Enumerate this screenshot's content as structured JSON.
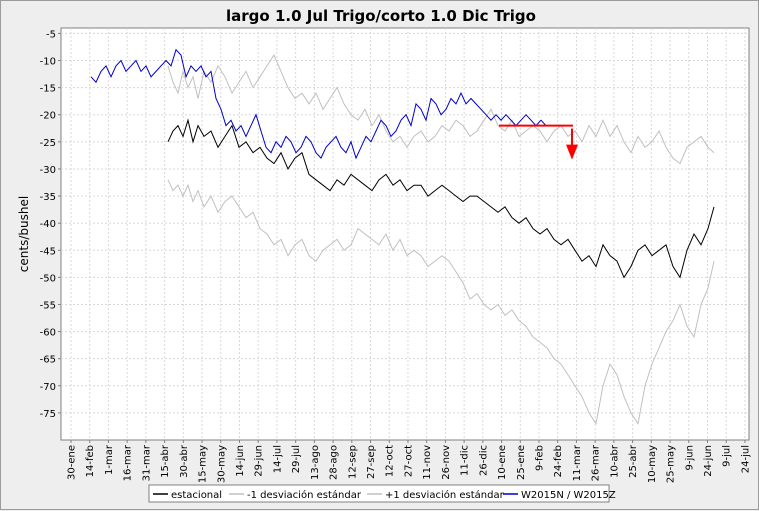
{
  "chart_data": {
    "type": "line",
    "title": "largo 1.0 Jul Trigo/corto 1.0 Dic Trigo",
    "xlabel": "",
    "ylabel": "cents/bushel",
    "ylim": [
      -80,
      -4
    ],
    "grid": true,
    "legend_position": "bottom",
    "x_tick_labels": [
      "30-ene",
      "14-feb",
      "1-mar",
      "16-mar",
      "31-mar",
      "15-abr",
      "30-abr",
      "15-may",
      "30-may",
      "14-jun",
      "29-jun",
      "14-jul",
      "29-jul",
      "13-ago",
      "28-ago",
      "12-sep",
      "27-sep",
      "12-oct",
      "27-oct",
      "11-nov",
      "26-nov",
      "11-dic",
      "26-dic",
      "10-ene",
      "25-ene",
      "9-feb",
      "24-feb",
      "11-mar",
      "26-mar",
      "10-abr",
      "25-abr",
      "10-may",
      "25-may",
      "9-jun",
      "24-jun",
      "9-jul",
      "24-jul"
    ],
    "y_ticks": [
      -5,
      -10,
      -15,
      -20,
      -25,
      -30,
      -35,
      -40,
      -45,
      -50,
      -55,
      -60,
      -65,
      -70,
      -75
    ],
    "series": [
      {
        "name": "estacional",
        "color": "#000000",
        "x": [
          167,
          172,
          177,
          182,
          187,
          192,
          197,
          203,
          210,
          217,
          224,
          231,
          238,
          245,
          252,
          259,
          266,
          273,
          280,
          287,
          294,
          301,
          308,
          315,
          322,
          329,
          336,
          343,
          350,
          357,
          364,
          371,
          378,
          385,
          392,
          399,
          406,
          413,
          420,
          427,
          434,
          441,
          448,
          455,
          462,
          469,
          476,
          483,
          490,
          497,
          504,
          511,
          518,
          525,
          532,
          539,
          546,
          553,
          560,
          567,
          574,
          581,
          588,
          595,
          602,
          609,
          616,
          623,
          630,
          637,
          644,
          651,
          658,
          665,
          672,
          679,
          686,
          693,
          700,
          707,
          713
        ],
        "values": [
          -25,
          -23,
          -22,
          -24,
          -21,
          -25,
          -22,
          -24,
          -23,
          -26,
          -24,
          -22,
          -26,
          -25,
          -27,
          -26,
          -28,
          -29,
          -27,
          -30,
          -28,
          -27,
          -31,
          -32,
          -33,
          -34,
          -32,
          -33,
          -31,
          -32,
          -33,
          -34,
          -32,
          -31,
          -33,
          -32,
          -34,
          -33,
          -33,
          -35,
          -34,
          -33,
          -34,
          -35,
          -36,
          -35,
          -35,
          -36,
          -37,
          -38,
          -37,
          -39,
          -40,
          -39,
          -41,
          -42,
          -41,
          -43,
          -44,
          -43,
          -45,
          -47,
          -46,
          -48,
          -44,
          -46,
          -47,
          -50,
          -48,
          -45,
          -44,
          -46,
          -45,
          -44,
          -48,
          -50,
          -45,
          -42,
          -44,
          -41,
          -37
        ]
      },
      {
        "name": "-1 desviación estándar",
        "color": "#c0c0c0",
        "x": [
          167,
          172,
          177,
          182,
          187,
          192,
          197,
          203,
          210,
          217,
          224,
          231,
          238,
          245,
          252,
          259,
          266,
          273,
          280,
          287,
          294,
          301,
          308,
          315,
          322,
          329,
          336,
          343,
          350,
          357,
          364,
          371,
          378,
          385,
          392,
          399,
          406,
          413,
          420,
          427,
          434,
          441,
          448,
          455,
          462,
          469,
          476,
          483,
          490,
          497,
          504,
          511,
          518,
          525,
          532,
          539,
          546,
          553,
          560,
          567,
          574,
          581,
          588,
          595,
          602,
          609,
          616,
          623,
          630,
          637,
          644,
          651,
          658,
          665,
          672,
          679,
          686,
          693,
          700,
          707,
          713
        ],
        "values": [
          -32,
          -34,
          -33,
          -35,
          -33,
          -36,
          -34,
          -37,
          -35,
          -38,
          -36,
          -35,
          -37,
          -39,
          -38,
          -41,
          -42,
          -44,
          -43,
          -46,
          -44,
          -43,
          -46,
          -47,
          -45,
          -44,
          -43,
          -45,
          -44,
          -41,
          -42,
          -43,
          -44,
          -42,
          -45,
          -43,
          -46,
          -45,
          -46,
          -48,
          -47,
          -46,
          -47,
          -49,
          -51,
          -54,
          -53,
          -55,
          -56,
          -55,
          -57,
          -56,
          -58,
          -59,
          -61,
          -62,
          -63,
          -65,
          -66,
          -68,
          -70,
          -72,
          -75,
          -77,
          -70,
          -66,
          -68,
          -72,
          -75,
          -77,
          -70,
          -66,
          -63,
          -60,
          -58,
          -55,
          -59,
          -61,
          -55,
          -52,
          -47
        ]
      },
      {
        "name": "+1 desviación estándar",
        "color": "#c0c0c0",
        "x": [
          167,
          172,
          177,
          182,
          187,
          192,
          197,
          203,
          210,
          217,
          224,
          231,
          238,
          245,
          252,
          259,
          266,
          273,
          280,
          287,
          294,
          301,
          308,
          315,
          322,
          329,
          336,
          343,
          350,
          357,
          364,
          371,
          378,
          385,
          392,
          399,
          406,
          413,
          420,
          427,
          434,
          441,
          448,
          455,
          462,
          469,
          476,
          483,
          490,
          497,
          504,
          511,
          518,
          525,
          532,
          539,
          546,
          553,
          560,
          567,
          574,
          581,
          588,
          595,
          602,
          609,
          616,
          623,
          630,
          637,
          644,
          651,
          658,
          665,
          672,
          679,
          686,
          693,
          700,
          707,
          713
        ],
        "values": [
          -11,
          -14,
          -16,
          -12,
          -15,
          -13,
          -17,
          -12,
          -14,
          -11,
          -13,
          -16,
          -14,
          -12,
          -15,
          -13,
          -11,
          -9,
          -12,
          -15,
          -17,
          -16,
          -18,
          -16,
          -19,
          -17,
          -15,
          -18,
          -20,
          -21,
          -19,
          -22,
          -20,
          -23,
          -25,
          -24,
          -26,
          -24,
          -23,
          -25,
          -24,
          -22,
          -23,
          -21,
          -22,
          -24,
          -23,
          -21,
          -19,
          -22,
          -23,
          -21,
          -24,
          -23,
          -22,
          -23,
          -25,
          -23,
          -22,
          -24,
          -23,
          -25,
          -22,
          -24,
          -21,
          -24,
          -22,
          -25,
          -27,
          -24,
          -26,
          -25,
          -23,
          -26,
          -28,
          -29,
          -26,
          -25,
          -24,
          -26,
          -27
        ]
      },
      {
        "name": "W2015N / W2015Z",
        "color": "#0000cc",
        "x": [
          90,
          95,
          100,
          105,
          110,
          115,
          120,
          125,
          130,
          135,
          140,
          145,
          150,
          155,
          160,
          165,
          170,
          175,
          180,
          185,
          190,
          195,
          200,
          205,
          210,
          215,
          220,
          225,
          230,
          235,
          240,
          245,
          250,
          255,
          260,
          265,
          270,
          275,
          280,
          285,
          290,
          295,
          300,
          305,
          310,
          315,
          320,
          325,
          330,
          335,
          340,
          345,
          350,
          355,
          360,
          365,
          370,
          375,
          380,
          385,
          390,
          395,
          400,
          405,
          410,
          415,
          420,
          425,
          430,
          435,
          440,
          445,
          450,
          455,
          460,
          465,
          470,
          475,
          480,
          485,
          490,
          495,
          500,
          505,
          510,
          515,
          520,
          525,
          530,
          535,
          540,
          545
        ],
        "values": [
          -13,
          -14,
          -12,
          -11,
          -13,
          -11,
          -10,
          -12,
          -11,
          -10,
          -12,
          -11,
          -13,
          -12,
          -11,
          -10,
          -11,
          -8,
          -9,
          -13,
          -11,
          -12,
          -11,
          -13,
          -12,
          -17,
          -19,
          -22,
          -21,
          -23,
          -22,
          -24,
          -22,
          -20,
          -23,
          -26,
          -27,
          -25,
          -26,
          -24,
          -25,
          -27,
          -26,
          -24,
          -25,
          -27,
          -28,
          -26,
          -25,
          -24,
          -26,
          -27,
          -25,
          -28,
          -26,
          -24,
          -25,
          -23,
          -21,
          -22,
          -24,
          -23,
          -21,
          -20,
          -22,
          -18,
          -19,
          -21,
          -17,
          -18,
          -20,
          -19,
          -17,
          -18,
          -16,
          -18,
          -17,
          -18,
          -19,
          -20,
          -21,
          -20,
          -21,
          -20,
          -21,
          -22,
          -21,
          -20,
          -21,
          -22,
          -21,
          -22
        ]
      }
    ],
    "annotations": [
      {
        "type": "horizontal-line",
        "color": "#ff0000",
        "value": -22
      },
      {
        "type": "down-arrow",
        "color": "#ff0000"
      }
    ]
  }
}
